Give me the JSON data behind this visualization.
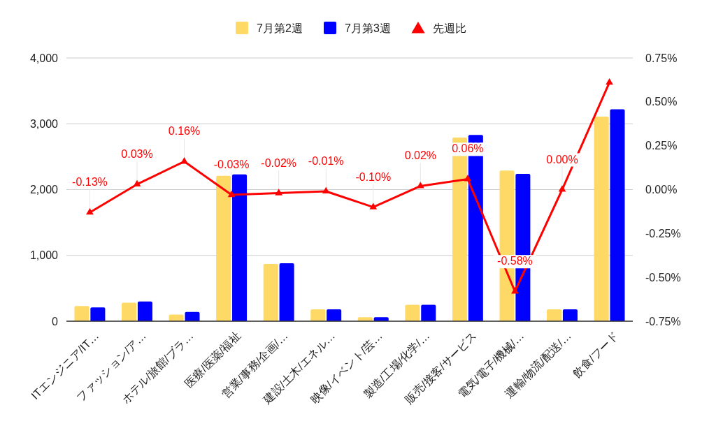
{
  "chart_data": {
    "type": "bar",
    "categories": [
      "ITエンジニア/IT…",
      "ファッション/ア…",
      "ホテル/旅館/ブラ…",
      "医療/医薬/福祉",
      "営業/事務/企画/…",
      "建設/土木/エネル…",
      "映像/イベント/芸…",
      "製造/工場/化学/…",
      "販売/接客/サービス",
      "電気/電子/機械/…",
      "運輸/物流/配送/…",
      "飲食/フード"
    ],
    "series": [
      {
        "name": "7月第2週",
        "color": "#ffd966",
        "values": [
          230,
          280,
          100,
          2210,
          870,
          180,
          60,
          250,
          2790,
          2290,
          180,
          3110
        ]
      },
      {
        "name": "7月第3週",
        "color": "#0000ff",
        "values": [
          210,
          300,
          140,
          2230,
          880,
          180,
          60,
          250,
          2830,
          2240,
          180,
          3220
        ]
      },
      {
        "name": "先週比",
        "type": "line",
        "axis": "y2",
        "color": "#ff0000",
        "marker": "triangle",
        "values": [
          -0.13,
          0.03,
          0.16,
          -0.03,
          -0.02,
          -0.01,
          -0.1,
          0.02,
          0.06,
          -0.58,
          0.0,
          0.61
        ],
        "value_labels": [
          "-0.13%",
          "0.03%",
          "0.16%",
          "-0.03%",
          "-0.02%",
          "-0.01%",
          "-0.10%",
          "0.02%",
          "0.06%",
          "-0.58%",
          "0.00%",
          null
        ]
      }
    ],
    "ylim": [
      0,
      4000
    ],
    "yticks": [
      {
        "value": 0,
        "label": "0"
      },
      {
        "value": 1000,
        "label": "1,000"
      },
      {
        "value": 2000,
        "label": "2,000"
      },
      {
        "value": 3000,
        "label": "3,000"
      },
      {
        "value": 4000,
        "label": "4,000"
      }
    ],
    "y2lim": [
      -0.75,
      0.75
    ],
    "y2ticks": [
      {
        "value": -0.75,
        "label": "-0.75%"
      },
      {
        "value": -0.5,
        "label": "-0.50%"
      },
      {
        "value": -0.25,
        "label": "-0.25%"
      },
      {
        "value": 0,
        "label": "0.00%"
      },
      {
        "value": 0.25,
        "label": "0.25%"
      },
      {
        "value": 0.5,
        "label": "0.50%"
      },
      {
        "value": 0.75,
        "label": "0.75%"
      }
    ],
    "grid": "y",
    "legend": "top"
  }
}
